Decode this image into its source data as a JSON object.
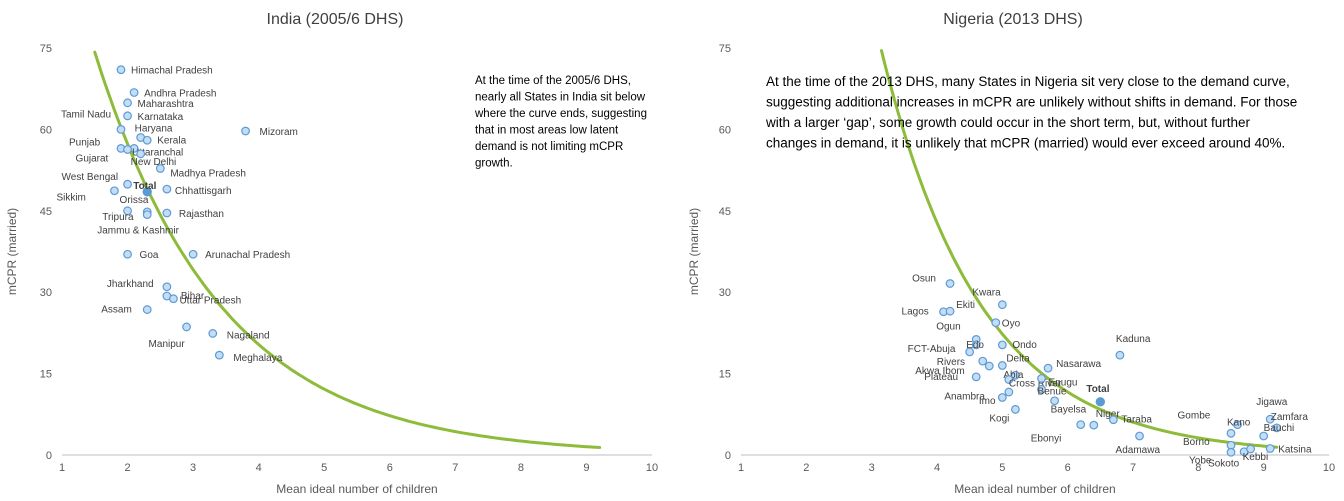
{
  "colors": {
    "curve": "#8dbb3a",
    "point_fill": "#c5dcf5",
    "point_stroke": "#5b9bd5",
    "total_fill": "#5b9bd5",
    "axis": "#bfbfbf",
    "text": "#404040"
  },
  "chart_data": [
    {
      "type": "scatter",
      "title": "India (2005/6 DHS)",
      "xlabel": "Mean ideal number of children",
      "ylabel": "mCPR (married)",
      "xlim": [
        1,
        10
      ],
      "ylim": [
        0,
        75
      ],
      "xticks": [
        "1",
        "2",
        "3",
        "4",
        "5",
        "6",
        "7",
        "8",
        "9",
        "10"
      ],
      "yticks": [
        "0",
        "15",
        "30",
        "45",
        "60",
        "75"
      ],
      "grid": false,
      "annotation": [
        "At the time of the 2005/6 DHS,",
        "nearly all States in India sit below",
        "where the curve ends, suggesting",
        "that in most areas low latent",
        "demand is not limiting mCPR",
        "growth."
      ],
      "curve": {
        "name": "demand curve",
        "x_start": 1.3,
        "x_end": 9.2
      },
      "points": [
        {
          "label": "Himachal Pradesh",
          "x": 1.9,
          "y": 71
        },
        {
          "label": "Andhra Pradesh",
          "x": 2.1,
          "y": 66.8
        },
        {
          "label": "Maharashtra",
          "x": 2.0,
          "y": 64.9
        },
        {
          "label": "Karnataka",
          "x": 2.0,
          "y": 62.5
        },
        {
          "label": "Tamil Nadu",
          "x": 1.9,
          "y": 60.0
        },
        {
          "label": "Haryana",
          "x": 2.2,
          "y": 58.5
        },
        {
          "label": "Kerala",
          "x": 2.3,
          "y": 58.0
        },
        {
          "label": "Punjab",
          "x": 1.9,
          "y": 56.5
        },
        {
          "label": "Uttaranchal",
          "x": 2.1,
          "y": 56.5
        },
        {
          "label": "Gujarat",
          "x": 2.0,
          "y": 56.3
        },
        {
          "label": "New Delhi",
          "x": 2.2,
          "y": 55.5
        },
        {
          "label": "Mizoram",
          "x": 3.8,
          "y": 59.7
        },
        {
          "label": "Madhya Pradesh",
          "x": 2.5,
          "y": 52.8
        },
        {
          "label": "West Bengal",
          "x": 2.0,
          "y": 49.9
        },
        {
          "label": "Sikkim",
          "x": 1.8,
          "y": 48.7
        },
        {
          "label": "Chhattisgarh",
          "x": 2.6,
          "y": 49.0
        },
        {
          "label": "Orissa",
          "x": 2.0,
          "y": 45.0
        },
        {
          "label": "Tripura",
          "x": 2.3,
          "y": 44.8
        },
        {
          "label": "Rajasthan",
          "x": 2.6,
          "y": 44.6
        },
        {
          "label": "Jammu & Kashmir",
          "x": 2.3,
          "y": 44.3
        },
        {
          "label": "Goa",
          "x": 2.0,
          "y": 37.0
        },
        {
          "label": "Arunachal Pradesh",
          "x": 3.0,
          "y": 37.0
        },
        {
          "label": "Jharkhand",
          "x": 2.6,
          "y": 31.0
        },
        {
          "label": "Bihar",
          "x": 2.6,
          "y": 29.3
        },
        {
          "label": "Uttar Pradesh",
          "x": 2.7,
          "y": 28.8
        },
        {
          "label": "Assam",
          "x": 2.3,
          "y": 26.8
        },
        {
          "label": "Manipur",
          "x": 2.9,
          "y": 23.6
        },
        {
          "label": "Nagaland",
          "x": 3.3,
          "y": 22.4
        },
        {
          "label": "Meghalaya",
          "x": 3.4,
          "y": 18.4
        }
      ],
      "total": {
        "label": "Total",
        "x": 2.3,
        "y": 48.5
      }
    },
    {
      "type": "scatter",
      "title": "Nigeria (2013 DHS)",
      "xlabel": "Mean ideal number of children",
      "ylabel": "mCPR (married)",
      "xlim": [
        1,
        10
      ],
      "ylim": [
        0,
        75
      ],
      "xticks": [
        "1",
        "2",
        "3",
        "4",
        "5",
        "6",
        "7",
        "8",
        "9",
        "10"
      ],
      "yticks": [
        "0",
        "15",
        "30",
        "45",
        "60",
        "75"
      ],
      "grid": false,
      "annotation": [
        "At the time of the 2013 DHS, many States in Nigeria sit very close to the demand curve,",
        "suggesting additional increases in mCPR are unlikely without shifts in demand.  For those",
        "with a larger ‘gap’, some growth could occur in the short term, but, without further",
        "changes in demand, it is unlikely that mCPR (married) would ever exceed around 40%."
      ],
      "curve": {
        "name": "demand curve",
        "x_start": 3.1,
        "x_end": 9.2
      },
      "points": [
        {
          "label": "Osun",
          "x": 4.2,
          "y": 31.6
        },
        {
          "label": "Kwara",
          "x": 5.0,
          "y": 27.7
        },
        {
          "label": "Lagos",
          "x": 4.1,
          "y": 26.4
        },
        {
          "label": "Ekiti",
          "x": 4.2,
          "y": 26.5
        },
        {
          "label": "Oyo",
          "x": 4.9,
          "y": 24.4
        },
        {
          "label": "Ogun",
          "x": 4.6,
          "y": 21.3
        },
        {
          "label": "FCT-Abuja",
          "x": 4.5,
          "y": 19.0
        },
        {
          "label": "Edo",
          "x": 4.6,
          "y": 20.3
        },
        {
          "label": "Ondo",
          "x": 5.0,
          "y": 20.3
        },
        {
          "label": "Kaduna",
          "x": 6.8,
          "y": 18.4
        },
        {
          "label": "Rivers",
          "x": 4.7,
          "y": 17.3
        },
        {
          "label": "Delta",
          "x": 5.0,
          "y": 16.5
        },
        {
          "label": "Nasarawa",
          "x": 5.7,
          "y": 16.0
        },
        {
          "label": "Akwa Ibom",
          "x": 4.8,
          "y": 16.4
        },
        {
          "label": "Abia",
          "x": 5.2,
          "y": 14.7
        },
        {
          "label": "Plateau",
          "x": 4.6,
          "y": 14.4
        },
        {
          "label": "Cross River",
          "x": 5.1,
          "y": 13.9
        },
        {
          "label": "Enugu",
          "x": 5.6,
          "y": 14.1
        },
        {
          "label": "Benue",
          "x": 5.6,
          "y": 12.1
        },
        {
          "label": "Anambra",
          "x": 5.0,
          "y": 10.6
        },
        {
          "label": "Imo",
          "x": 5.1,
          "y": 11.6
        },
        {
          "label": "Bayelsa",
          "x": 5.8,
          "y": 10.0
        },
        {
          "label": "Kogi",
          "x": 5.2,
          "y": 8.4
        },
        {
          "label": "Niger",
          "x": 6.4,
          "y": 5.5
        },
        {
          "label": "Taraba",
          "x": 6.7,
          "y": 6.5
        },
        {
          "label": "Ebonyi",
          "x": 6.2,
          "y": 5.6
        },
        {
          "label": "Adamawa",
          "x": 7.1,
          "y": 3.5
        },
        {
          "label": "Jigawa",
          "x": 9.1,
          "y": 6.6
        },
        {
          "label": "Gombe",
          "x": 8.6,
          "y": 5.6
        },
        {
          "label": "Zamfara",
          "x": 9.2,
          "y": 5.0
        },
        {
          "label": "Kano",
          "x": 8.5,
          "y": 4.0
        },
        {
          "label": "Bauchi",
          "x": 9.0,
          "y": 3.5
        },
        {
          "label": "Borno",
          "x": 8.5,
          "y": 1.8
        },
        {
          "label": "Yobe",
          "x": 8.5,
          "y": 0.5
        },
        {
          "label": "Katsina",
          "x": 9.1,
          "y": 1.2
        },
        {
          "label": "Sokoto",
          "x": 8.7,
          "y": 0.6
        },
        {
          "label": "Kebbi",
          "x": 8.8,
          "y": 1.1
        }
      ],
      "total": {
        "label": "Total",
        "x": 6.5,
        "y": 9.8
      }
    }
  ]
}
